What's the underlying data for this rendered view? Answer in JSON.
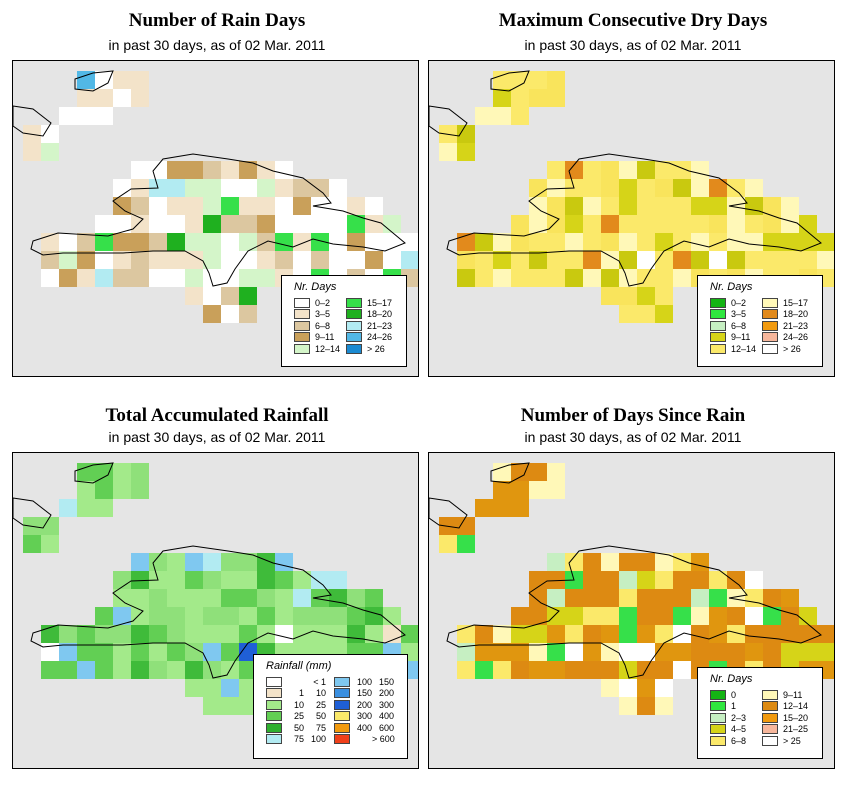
{
  "colors": {
    "land_grey": "#e5e5e5",
    "outline": "#000000"
  },
  "panels": [
    {
      "title": "Number of Rain Days",
      "subtitle": "in past 30 days, as of  02 Mar. 2011",
      "palette": [
        "#ffffff",
        "#f3e3c9",
        "#dcc7a0",
        "#c9a05a",
        "#d4f5c9",
        "#36e04a",
        "#1fb01f",
        "#b2ebf2",
        "#52b8e6",
        "#1b8ad1"
      ],
      "legend": {
        "title": "Nr. Days",
        "col1": [
          {
            "label": "0–2",
            "color": "#ffffff"
          },
          {
            "label": "3–5",
            "color": "#f3e3c9"
          },
          {
            "label": "6–8",
            "color": "#dcc7a0"
          },
          {
            "label": "9–11",
            "color": "#c9a05a"
          },
          {
            "label": "12–14",
            "color": "#d4f5c9"
          }
        ],
        "col2": [
          {
            "label": "15–17",
            "color": "#36e04a"
          },
          {
            "label": "18–20",
            "color": "#1fb01f"
          },
          {
            "label": "21–23",
            "color": "#b2ebf2"
          },
          {
            "label": "24–26",
            "color": "#52b8e6"
          },
          {
            "label": "> 26",
            "color": "#1b8ad1"
          }
        ]
      }
    },
    {
      "title": "Maximum Consecutive Dry Days",
      "subtitle": "in past 30 days, as of  02 Mar. 2011",
      "palette": [
        "#fbe96a",
        "#f9e45c",
        "#fff8b8",
        "#d6d418",
        "#c9c90f",
        "#e28a1c",
        "#ffffff",
        "#f7b79c",
        "#c6efc2"
      ],
      "legend": {
        "title": "Nr. Days",
        "col1": [
          {
            "label": "0–2",
            "color": "#14b414"
          },
          {
            "label": "3–5",
            "color": "#2fe83f"
          },
          {
            "label": "6–8",
            "color": "#c6efc2"
          },
          {
            "label": "9–11",
            "color": "#d6d418"
          },
          {
            "label": "12–14",
            "color": "#fbe96a"
          }
        ],
        "col2": [
          {
            "label": "15–17",
            "color": "#fff8b8"
          },
          {
            "label": "18–20",
            "color": "#e28a1c"
          },
          {
            "label": "21–23",
            "color": "#f19a0e"
          },
          {
            "label": "24–26",
            "color": "#f7b79c"
          },
          {
            "label": "> 26",
            "color": "#ffffff"
          }
        ]
      }
    },
    {
      "title": "Total Accumulated Rainfall",
      "subtitle": "in past 30 days, as of  02 Mar. 2011",
      "palette": [
        "#a3ea8a",
        "#8fe07a",
        "#62cf54",
        "#3fbb3a",
        "#b2ebf2",
        "#7fc8f0",
        "#1f5fd6",
        "#f3e3c9",
        "#ffffff"
      ],
      "legend": {
        "title": "Rainfall (mm)",
        "col1": [
          {
            "a": "",
            "b": "< 1",
            "color": "#ffffff"
          },
          {
            "a": "1",
            "b": "10",
            "color": "#f3e3c9"
          },
          {
            "a": "10",
            "b": "25",
            "color": "#a3ea8a"
          },
          {
            "a": "25",
            "b": "50",
            "color": "#62cf54"
          },
          {
            "a": "50",
            "b": "75",
            "color": "#2fb02f"
          },
          {
            "a": "75",
            "b": "100",
            "color": "#b2ebf2"
          }
        ],
        "col2": [
          {
            "a": "100",
            "b": "150",
            "color": "#7fc8f0"
          },
          {
            "a": "150",
            "b": "200",
            "color": "#3a8fe0"
          },
          {
            "a": "200",
            "b": "300",
            "color": "#1f5fd6"
          },
          {
            "a": "300",
            "b": "400",
            "color": "#fbe96a"
          },
          {
            "a": "400",
            "b": "600",
            "color": "#f19a0e"
          },
          {
            "a": "",
            "b": "> 600",
            "color": "#f0401a"
          }
        ]
      }
    },
    {
      "title": "Number of Days Since Rain",
      "subtitle": "in past 30 days, as of  02 Mar. 2011",
      "palette": [
        "#dd8a12",
        "#e0960f",
        "#fbe96a",
        "#fff8b8",
        "#d6d418",
        "#36e04a",
        "#ffffff",
        "#c6efc2",
        "#14b414",
        "#f7b79c"
      ],
      "legend": {
        "title": "Nr. Days",
        "col1": [
          {
            "label": "0",
            "color": "#14b414"
          },
          {
            "label": "1",
            "color": "#2fe83f"
          },
          {
            "label": "2–3",
            "color": "#c6efc2"
          },
          {
            "label": "4–5",
            "color": "#d6d418"
          },
          {
            "label": "6–8",
            "color": "#fbe96a"
          }
        ],
        "col2": [
          {
            "label": "9–11",
            "color": "#fff8b8"
          },
          {
            "label": "12–14",
            "color": "#dd8a12"
          },
          {
            "label": "15–20",
            "color": "#f19a0e"
          },
          {
            "label": "21–25",
            "color": "#f7b79c"
          },
          {
            "label": "> 25",
            "color": "#ffffff"
          }
        ]
      }
    }
  ]
}
